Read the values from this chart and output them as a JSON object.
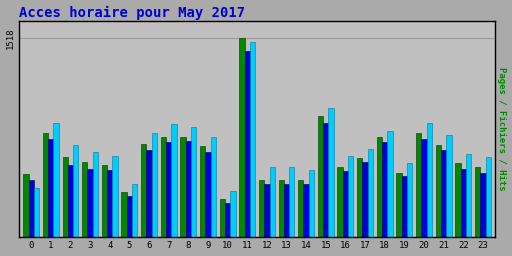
{
  "title": "Acces horaire pour May 2017",
  "title_color": "#0000cc",
  "title_fontsize": 10,
  "ylabel": "Pages / Fichiers / Hits",
  "ylabel_color": "#008800",
  "hours": [
    0,
    1,
    2,
    3,
    4,
    5,
    6,
    7,
    8,
    9,
    10,
    11,
    12,
    13,
    14,
    15,
    16,
    17,
    18,
    19,
    20,
    21,
    22,
    23
  ],
  "pages": [
    480,
    790,
    610,
    570,
    550,
    340,
    710,
    760,
    760,
    690,
    290,
    1518,
    430,
    430,
    430,
    920,
    530,
    600,
    760,
    490,
    790,
    700,
    560,
    530
  ],
  "fichiers": [
    430,
    750,
    550,
    520,
    510,
    310,
    660,
    720,
    730,
    650,
    260,
    1420,
    400,
    400,
    400,
    870,
    500,
    570,
    720,
    460,
    750,
    665,
    520,
    490
  ],
  "hits": [
    370,
    870,
    700,
    650,
    620,
    400,
    790,
    860,
    840,
    760,
    350,
    1490,
    530,
    530,
    510,
    980,
    620,
    670,
    810,
    560,
    870,
    775,
    630,
    610
  ],
  "pages_color": "#008800",
  "fichiers_color": "#0000dd",
  "hits_color": "#00ccff",
  "bg_color": "#aaaaaa",
  "plot_bg": "#c0c0c0",
  "ytick_val": 1518,
  "ylim_max": 1650,
  "bar_width": 0.27
}
